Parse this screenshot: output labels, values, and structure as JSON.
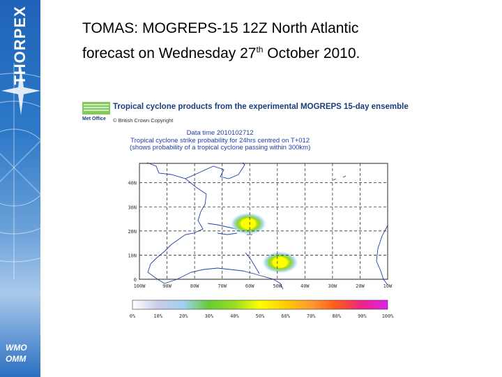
{
  "slide": {
    "title_line1": "TOMAS: MOGREPS-15 12Z North Atlantic",
    "title_line2_prefix": "forecast on Wednesday 27",
    "title_line2_sup": "th",
    "title_line2_suffix": " October 2010."
  },
  "banner": {
    "brand": "THORPEX",
    "org_line1": "WMO",
    "org_line2": "OMM"
  },
  "figure": {
    "header": "Tropical cyclone products from the experimental MOGREPS 15-day ensemble",
    "logo_text": "Met Office",
    "copyright": "© British Crown Copyright",
    "data_time": "Data time 2010102712",
    "description": "Tropical cyclone strike probability for 24hrs centred on T+012",
    "note": "(shows probability of a tropical cyclone passing within 300km)",
    "lat_labels": [
      "40N",
      "30N",
      "20N",
      "10N",
      "0"
    ],
    "lat_values": [
      40,
      30,
      20,
      10,
      0
    ],
    "lon_labels": [
      "100W",
      "90W",
      "80W",
      "70W",
      "60W",
      "50W",
      "40W",
      "30W",
      "20W",
      "10W"
    ],
    "lon_values": [
      -100,
      -90,
      -80,
      -70,
      -60,
      -50,
      -40,
      -30,
      -20,
      -10
    ],
    "map_extent": {
      "lon": [
        -100,
        -10
      ],
      "lat": [
        0,
        48
      ]
    },
    "colorbar_labels": [
      "0%",
      "10%",
      "20%",
      "30%",
      "40%",
      "50%",
      "60%",
      "70%",
      "80%",
      "90%",
      "100%"
    ],
    "colorbar_colors": [
      "#ffffff",
      "#c8cde6",
      "#9fd0f5",
      "#66cc33",
      "#99dd22",
      "#ffff00",
      "#ffcc00",
      "#ff9933",
      "#ff5a1a",
      "#ee2288",
      "#dd22ee"
    ],
    "probability_blobs": [
      {
        "lon": -60.5,
        "lat": 23,
        "peak_percent": 50,
        "label": "Tomas strike probability north"
      },
      {
        "lon": -49,
        "lat": 7,
        "peak_percent": 50,
        "label": "Tomas strike probability south"
      }
    ]
  }
}
